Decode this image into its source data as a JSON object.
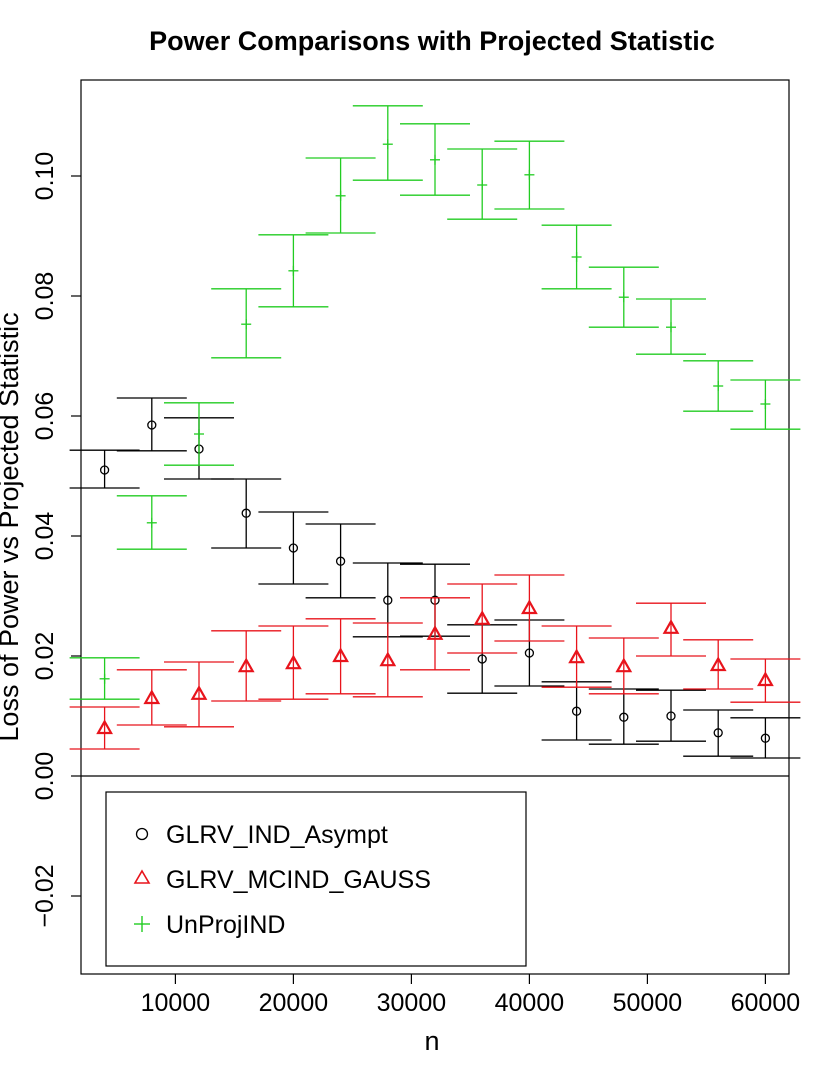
{
  "chart_data": {
    "type": "scatter",
    "title": "Power Comparisons with Projected Statistic",
    "xlabel": "n",
    "ylabel": "Loss of Power vs Projected Statistic",
    "xlim": [
      2000,
      62000
    ],
    "ylim": [
      -0.033,
      0.116
    ],
    "x_ticks": [
      10000,
      20000,
      30000,
      40000,
      50000,
      60000
    ],
    "x_tick_labels": [
      "10000",
      "20000",
      "30000",
      "40000",
      "50000",
      "60000"
    ],
    "y_ticks": [
      -0.02,
      0.0,
      0.02,
      0.04,
      0.06,
      0.08,
      0.1
    ],
    "y_tick_labels": [
      "−0.02",
      "0.00",
      "0.02",
      "0.04",
      "0.06",
      "0.08",
      "0.10"
    ],
    "reference_line_y": 0,
    "x": [
      4000,
      8000,
      12000,
      16000,
      20000,
      24000,
      28000,
      32000,
      36000,
      40000,
      44000,
      48000,
      52000,
      56000,
      60000
    ],
    "series": [
      {
        "name": "GLRV_IND_Asympt",
        "marker": "circle",
        "color": "#000000",
        "values": [
          0.051,
          0.0585,
          0.0545,
          0.0438,
          0.038,
          0.0358,
          0.0293,
          0.0293,
          0.0195,
          0.0205,
          0.0108,
          0.0098,
          0.01,
          0.0072,
          0.0063
        ],
        "lower": [
          0.048,
          0.0542,
          0.0495,
          0.038,
          0.032,
          0.0297,
          0.0232,
          0.0233,
          0.0138,
          0.015,
          0.006,
          0.0053,
          0.0058,
          0.0033,
          0.003
        ],
        "upper": [
          0.0543,
          0.063,
          0.0597,
          0.0495,
          0.044,
          0.042,
          0.0355,
          0.0353,
          0.0252,
          0.026,
          0.0157,
          0.0145,
          0.0143,
          0.011,
          0.0097
        ]
      },
      {
        "name": "GLRV_MCIND_GAUSS",
        "marker": "triangle",
        "color": "#e8141c",
        "values": [
          0.008,
          0.013,
          0.0137,
          0.0183,
          0.0188,
          0.02,
          0.0193,
          0.0237,
          0.0262,
          0.028,
          0.0198,
          0.0183,
          0.0247,
          0.0185,
          0.016
        ],
        "lower": [
          0.0045,
          0.0085,
          0.0082,
          0.0125,
          0.0128,
          0.0137,
          0.0132,
          0.0177,
          0.0205,
          0.0225,
          0.0148,
          0.0137,
          0.02,
          0.0145,
          0.0123
        ],
        "upper": [
          0.0115,
          0.0177,
          0.019,
          0.0242,
          0.025,
          0.0262,
          0.0255,
          0.0297,
          0.032,
          0.0335,
          0.025,
          0.023,
          0.0288,
          0.0227,
          0.0195
        ]
      },
      {
        "name": "UnProjIND",
        "marker": "plus",
        "color": "#22cc22",
        "values": [
          0.0162,
          0.0422,
          0.057,
          0.0753,
          0.0842,
          0.0967,
          0.1053,
          0.1027,
          0.0985,
          0.1002,
          0.0865,
          0.0798,
          0.0748,
          0.065,
          0.062
        ],
        "lower": [
          0.0128,
          0.0378,
          0.0518,
          0.0697,
          0.0782,
          0.0905,
          0.0993,
          0.0968,
          0.0928,
          0.0945,
          0.0812,
          0.0748,
          0.0703,
          0.0608,
          0.0578
        ],
        "upper": [
          0.0197,
          0.0467,
          0.0622,
          0.0812,
          0.0902,
          0.103,
          0.1117,
          0.1087,
          0.1045,
          0.1058,
          0.0918,
          0.0848,
          0.0795,
          0.0692,
          0.066
        ]
      }
    ],
    "legend": {
      "position": "bottom-left",
      "entries": [
        "GLRV_IND_Asympt",
        "GLRV_MCIND_GAUSS",
        "UnProjIND"
      ]
    }
  }
}
